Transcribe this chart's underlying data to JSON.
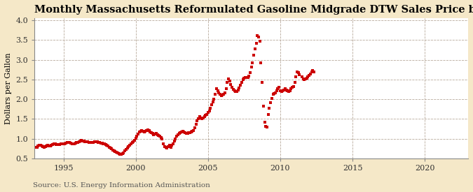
{
  "title": "Monthly Massachusetts Reformulated Gasoline Midgrade DTW Sales Price by All Sellers",
  "ylabel": "Dollars per Gallon",
  "source": "Source: U.S. Energy Information Administration",
  "background_color": "#f5e8c8",
  "plot_background_color": "#ffffff",
  "line_color": "#cc0000",
  "marker": "s",
  "markersize": 2.8,
  "xlim": [
    1993.0,
    2023.0
  ],
  "ylim": [
    0.5,
    4.05
  ],
  "yticks": [
    0.5,
    1.0,
    1.5,
    2.0,
    2.5,
    3.0,
    3.5,
    4.0
  ],
  "xticks": [
    1995,
    2000,
    2005,
    2010,
    2015,
    2020
  ],
  "title_fontsize": 10.5,
  "label_fontsize": 8,
  "tick_fontsize": 8,
  "source_fontsize": 7.5,
  "grid_color": "#b0a090",
  "data": [
    [
      1993.083,
      0.78
    ],
    [
      1993.167,
      0.79
    ],
    [
      1993.25,
      0.81
    ],
    [
      1993.333,
      0.83
    ],
    [
      1993.417,
      0.84
    ],
    [
      1993.5,
      0.82
    ],
    [
      1993.583,
      0.8
    ],
    [
      1993.667,
      0.79
    ],
    [
      1993.75,
      0.8
    ],
    [
      1993.833,
      0.81
    ],
    [
      1993.917,
      0.83
    ],
    [
      1994.0,
      0.82
    ],
    [
      1994.083,
      0.82
    ],
    [
      1994.167,
      0.83
    ],
    [
      1994.25,
      0.85
    ],
    [
      1994.333,
      0.87
    ],
    [
      1994.417,
      0.87
    ],
    [
      1994.5,
      0.86
    ],
    [
      1994.583,
      0.85
    ],
    [
      1994.667,
      0.85
    ],
    [
      1994.75,
      0.86
    ],
    [
      1994.833,
      0.87
    ],
    [
      1994.917,
      0.88
    ],
    [
      1995.0,
      0.88
    ],
    [
      1995.083,
      0.88
    ],
    [
      1995.167,
      0.89
    ],
    [
      1995.25,
      0.91
    ],
    [
      1995.333,
      0.91
    ],
    [
      1995.417,
      0.9
    ],
    [
      1995.5,
      0.89
    ],
    [
      1995.583,
      0.88
    ],
    [
      1995.667,
      0.88
    ],
    [
      1995.75,
      0.88
    ],
    [
      1995.833,
      0.89
    ],
    [
      1995.917,
      0.9
    ],
    [
      1996.0,
      0.91
    ],
    [
      1996.083,
      0.92
    ],
    [
      1996.167,
      0.94
    ],
    [
      1996.25,
      0.96
    ],
    [
      1996.333,
      0.95
    ],
    [
      1996.417,
      0.94
    ],
    [
      1996.5,
      0.93
    ],
    [
      1996.583,
      0.92
    ],
    [
      1996.667,
      0.92
    ],
    [
      1996.75,
      0.91
    ],
    [
      1996.833,
      0.91
    ],
    [
      1996.917,
      0.9
    ],
    [
      1997.0,
      0.9
    ],
    [
      1997.083,
      0.91
    ],
    [
      1997.167,
      0.92
    ],
    [
      1997.25,
      0.93
    ],
    [
      1997.333,
      0.92
    ],
    [
      1997.417,
      0.91
    ],
    [
      1997.5,
      0.9
    ],
    [
      1997.583,
      0.89
    ],
    [
      1997.667,
      0.89
    ],
    [
      1997.75,
      0.88
    ],
    [
      1997.833,
      0.87
    ],
    [
      1997.917,
      0.86
    ],
    [
      1998.0,
      0.84
    ],
    [
      1998.083,
      0.82
    ],
    [
      1998.167,
      0.78
    ],
    [
      1998.25,
      0.76
    ],
    [
      1998.333,
      0.74
    ],
    [
      1998.417,
      0.72
    ],
    [
      1998.5,
      0.7
    ],
    [
      1998.583,
      0.68
    ],
    [
      1998.667,
      0.66
    ],
    [
      1998.75,
      0.64
    ],
    [
      1998.833,
      0.62
    ],
    [
      1998.917,
      0.61
    ],
    [
      1999.0,
      0.6
    ],
    [
      1999.083,
      0.62
    ],
    [
      1999.167,
      0.65
    ],
    [
      1999.25,
      0.69
    ],
    [
      1999.333,
      0.73
    ],
    [
      1999.417,
      0.77
    ],
    [
      1999.5,
      0.8
    ],
    [
      1999.583,
      0.83
    ],
    [
      1999.667,
      0.87
    ],
    [
      1999.75,
      0.9
    ],
    [
      1999.833,
      0.93
    ],
    [
      1999.917,
      0.96
    ],
    [
      2000.0,
      1.01
    ],
    [
      2000.083,
      1.06
    ],
    [
      2000.167,
      1.12
    ],
    [
      2000.25,
      1.17
    ],
    [
      2000.333,
      1.19
    ],
    [
      2000.417,
      1.21
    ],
    [
      2000.5,
      1.19
    ],
    [
      2000.583,
      1.18
    ],
    [
      2000.667,
      1.19
    ],
    [
      2000.75,
      1.21
    ],
    [
      2000.833,
      1.22
    ],
    [
      2000.917,
      1.2
    ],
    [
      2001.0,
      1.18
    ],
    [
      2001.083,
      1.15
    ],
    [
      2001.167,
      1.13
    ],
    [
      2001.25,
      1.11
    ],
    [
      2001.333,
      1.12
    ],
    [
      2001.417,
      1.13
    ],
    [
      2001.5,
      1.11
    ],
    [
      2001.583,
      1.09
    ],
    [
      2001.667,
      1.07
    ],
    [
      2001.75,
      1.03
    ],
    [
      2001.833,
      0.99
    ],
    [
      2001.917,
      0.88
    ],
    [
      2002.0,
      0.8
    ],
    [
      2002.083,
      0.78
    ],
    [
      2002.167,
      0.77
    ],
    [
      2002.25,
      0.8
    ],
    [
      2002.333,
      0.83
    ],
    [
      2002.417,
      0.79
    ],
    [
      2002.5,
      0.84
    ],
    [
      2002.583,
      0.88
    ],
    [
      2002.667,
      0.95
    ],
    [
      2002.75,
      1.0
    ],
    [
      2002.833,
      1.06
    ],
    [
      2002.917,
      1.11
    ],
    [
      2003.0,
      1.13
    ],
    [
      2003.083,
      1.15
    ],
    [
      2003.167,
      1.17
    ],
    [
      2003.25,
      1.19
    ],
    [
      2003.333,
      1.17
    ],
    [
      2003.417,
      1.15
    ],
    [
      2003.5,
      1.13
    ],
    [
      2003.583,
      1.14
    ],
    [
      2003.667,
      1.15
    ],
    [
      2003.75,
      1.16
    ],
    [
      2003.833,
      1.17
    ],
    [
      2003.917,
      1.19
    ],
    [
      2004.0,
      1.21
    ],
    [
      2004.083,
      1.27
    ],
    [
      2004.167,
      1.36
    ],
    [
      2004.25,
      1.46
    ],
    [
      2004.333,
      1.51
    ],
    [
      2004.417,
      1.56
    ],
    [
      2004.5,
      1.53
    ],
    [
      2004.583,
      1.51
    ],
    [
      2004.667,
      1.53
    ],
    [
      2004.75,
      1.56
    ],
    [
      2004.833,
      1.59
    ],
    [
      2004.917,
      1.61
    ],
    [
      2005.0,
      1.66
    ],
    [
      2005.083,
      1.71
    ],
    [
      2005.167,
      1.77
    ],
    [
      2005.25,
      1.87
    ],
    [
      2005.333,
      1.93
    ],
    [
      2005.417,
      2.01
    ],
    [
      2005.5,
      2.12
    ],
    [
      2005.583,
      2.27
    ],
    [
      2005.667,
      2.22
    ],
    [
      2005.75,
      2.17
    ],
    [
      2005.833,
      2.12
    ],
    [
      2005.917,
      2.09
    ],
    [
      2006.0,
      2.11
    ],
    [
      2006.083,
      2.13
    ],
    [
      2006.167,
      2.17
    ],
    [
      2006.25,
      2.27
    ],
    [
      2006.333,
      2.42
    ],
    [
      2006.417,
      2.52
    ],
    [
      2006.5,
      2.47
    ],
    [
      2006.583,
      2.37
    ],
    [
      2006.667,
      2.31
    ],
    [
      2006.75,
      2.26
    ],
    [
      2006.833,
      2.21
    ],
    [
      2006.917,
      2.19
    ],
    [
      2007.0,
      2.19
    ],
    [
      2007.083,
      2.23
    ],
    [
      2007.167,
      2.29
    ],
    [
      2007.25,
      2.36
    ],
    [
      2007.333,
      2.43
    ],
    [
      2007.417,
      2.49
    ],
    [
      2007.5,
      2.53
    ],
    [
      2007.583,
      2.56
    ],
    [
      2007.667,
      2.56
    ],
    [
      2007.75,
      2.56
    ],
    [
      2007.833,
      2.59
    ],
    [
      2007.917,
      2.67
    ],
    [
      2008.0,
      2.82
    ],
    [
      2008.083,
      2.92
    ],
    [
      2008.167,
      3.12
    ],
    [
      2008.25,
      3.27
    ],
    [
      2008.333,
      3.42
    ],
    [
      2008.417,
      3.62
    ],
    [
      2008.5,
      3.57
    ],
    [
      2008.583,
      3.48
    ],
    [
      2008.667,
      2.92
    ],
    [
      2008.75,
      2.42
    ],
    [
      2008.833,
      1.82
    ],
    [
      2008.917,
      1.42
    ],
    [
      2009.0,
      1.32
    ],
    [
      2009.083,
      1.3
    ],
    [
      2009.167,
      1.62
    ],
    [
      2009.25,
      1.77
    ],
    [
      2009.333,
      1.92
    ],
    [
      2009.417,
      2.02
    ],
    [
      2009.5,
      2.12
    ],
    [
      2009.583,
      2.14
    ],
    [
      2009.667,
      2.17
    ],
    [
      2009.75,
      2.22
    ],
    [
      2009.833,
      2.27
    ],
    [
      2009.917,
      2.3
    ],
    [
      2010.0,
      2.22
    ],
    [
      2010.083,
      2.2
    ],
    [
      2010.167,
      2.22
    ],
    [
      2010.25,
      2.24
    ],
    [
      2010.333,
      2.27
    ],
    [
      2010.417,
      2.23
    ],
    [
      2010.5,
      2.21
    ],
    [
      2010.583,
      2.2
    ],
    [
      2010.667,
      2.22
    ],
    [
      2010.75,
      2.27
    ],
    [
      2010.833,
      2.3
    ],
    [
      2010.917,
      2.32
    ],
    [
      2011.0,
      2.42
    ],
    [
      2011.083,
      2.57
    ],
    [
      2011.167,
      2.7
    ],
    [
      2011.25,
      2.67
    ],
    [
      2011.333,
      2.62
    ],
    [
      2011.5,
      2.57
    ],
    [
      2011.583,
      2.52
    ],
    [
      2011.667,
      2.5
    ],
    [
      2011.75,
      2.52
    ],
    [
      2011.833,
      2.54
    ],
    [
      2011.917,
      2.57
    ],
    [
      2012.0,
      2.6
    ],
    [
      2012.083,
      2.64
    ],
    [
      2012.167,
      2.7
    ],
    [
      2012.25,
      2.72
    ],
    [
      2012.333,
      2.7
    ]
  ]
}
